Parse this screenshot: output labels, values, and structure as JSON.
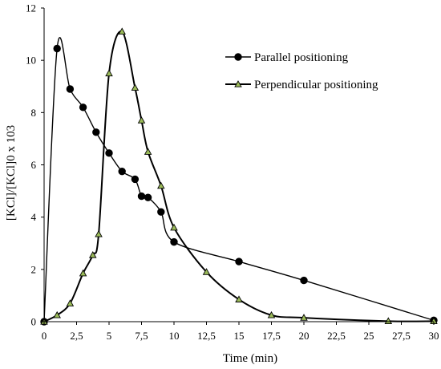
{
  "chart_data": {
    "type": "line",
    "title": "",
    "xlabel": "Time (min)",
    "ylabel": "[KCl]/[KCl]0 x 103",
    "xlim": [
      0,
      30
    ],
    "ylim": [
      0,
      12
    ],
    "x_ticks": [
      "0",
      "2,5",
      "5",
      "7,5",
      "10",
      "12,5",
      "15",
      "17,5",
      "20",
      "22,5",
      "25",
      "27,5",
      "30"
    ],
    "y_ticks": [
      "0",
      "2",
      "4",
      "6",
      "8",
      "10",
      "12"
    ],
    "grid": false,
    "legend_position": "top-right",
    "series": [
      {
        "name": "Parallel positioning",
        "marker": "circle",
        "color": "#000000",
        "marker_fill": "#000000",
        "points": [
          [
            0,
            0
          ],
          [
            1,
            10.45
          ],
          [
            2,
            8.9
          ],
          [
            3,
            8.2
          ],
          [
            4,
            7.25
          ],
          [
            5,
            6.45
          ],
          [
            6,
            5.75
          ],
          [
            7,
            5.45
          ],
          [
            7.5,
            4.8
          ],
          [
            8,
            4.75
          ],
          [
            9,
            4.2
          ],
          [
            10,
            3.05
          ],
          [
            15,
            2.3
          ],
          [
            20,
            1.58
          ],
          [
            30,
            0.05
          ]
        ]
      },
      {
        "name": "Perpendicular positioning",
        "marker": "triangle",
        "color": "#000000",
        "marker_fill": "#9bbb59",
        "points": [
          [
            0,
            0
          ],
          [
            1,
            0.25
          ],
          [
            2,
            0.7
          ],
          [
            3,
            1.85
          ],
          [
            3.75,
            2.55
          ],
          [
            4.2,
            3.35
          ],
          [
            5,
            9.5
          ],
          [
            6,
            11.1
          ],
          [
            7,
            8.95
          ],
          [
            7.5,
            7.7
          ],
          [
            8,
            6.5
          ],
          [
            9,
            5.2
          ],
          [
            10,
            3.6
          ],
          [
            12.5,
            1.9
          ],
          [
            15,
            0.85
          ],
          [
            17.5,
            0.25
          ],
          [
            20,
            0.15
          ],
          [
            26.5,
            0.02
          ],
          [
            30,
            0.02
          ]
        ]
      }
    ]
  }
}
